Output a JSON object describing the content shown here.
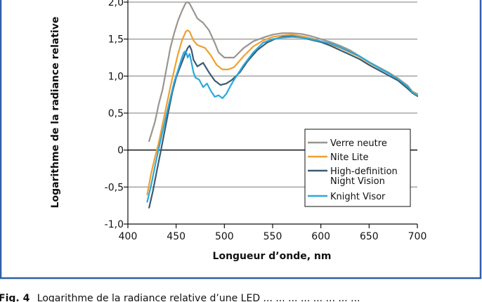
{
  "chart_data": {
    "type": "line",
    "title": "",
    "xlabel": "Longueur d’onde, nm",
    "ylabel": "Logarithme de la radiance relative",
    "xlim": [
      400,
      700
    ],
    "ylim": [
      -1.0,
      2.0
    ],
    "x_ticks": [
      "400",
      "450",
      "500",
      "550",
      "600",
      "650",
      "700"
    ],
    "y_ticks": [
      "-1,0",
      "-0,5",
      "0",
      "0,5",
      "1,0",
      "1,5",
      "2,0"
    ],
    "grid": "horizontal",
    "legend_position": "bottom-right",
    "series": [
      {
        "name": "Verre neutre",
        "color": "#9a958f",
        "x": [
          422,
          428,
          432,
          436,
          440,
          444,
          448,
          452,
          456,
          460,
          462,
          464,
          468,
          472,
          478,
          484,
          490,
          494,
          500,
          504,
          510,
          520,
          530,
          540,
          550,
          560,
          570,
          580,
          590,
          600,
          610,
          620,
          630,
          640,
          650,
          660,
          670,
          680,
          690,
          695,
          700
        ],
        "y": [
          0.12,
          0.38,
          0.62,
          0.82,
          1.1,
          1.38,
          1.58,
          1.75,
          1.88,
          1.99,
          2.0,
          1.98,
          1.88,
          1.78,
          1.72,
          1.62,
          1.45,
          1.32,
          1.25,
          1.25,
          1.25,
          1.38,
          1.47,
          1.52,
          1.56,
          1.58,
          1.58,
          1.57,
          1.54,
          1.5,
          1.46,
          1.41,
          1.35,
          1.27,
          1.19,
          1.12,
          1.05,
          0.97,
          0.87,
          0.79,
          0.76
        ]
      },
      {
        "name": "Nite Lite",
        "color": "#f0a030",
        "x": [
          420,
          424,
          428,
          432,
          436,
          440,
          444,
          448,
          452,
          456,
          460,
          462,
          464,
          468,
          472,
          476,
          480,
          486,
          492,
          498,
          504,
          510,
          520,
          530,
          540,
          550,
          560,
          570,
          580,
          590,
          600,
          610,
          620,
          630,
          640,
          650,
          660,
          670,
          680,
          690,
          695,
          700
        ],
        "y": [
          -0.6,
          -0.32,
          -0.1,
          0.1,
          0.35,
          0.6,
          0.85,
          1.08,
          1.3,
          1.48,
          1.6,
          1.62,
          1.6,
          1.48,
          1.42,
          1.4,
          1.38,
          1.28,
          1.15,
          1.09,
          1.09,
          1.12,
          1.27,
          1.4,
          1.48,
          1.53,
          1.55,
          1.56,
          1.54,
          1.51,
          1.47,
          1.43,
          1.38,
          1.32,
          1.26,
          1.18,
          1.11,
          1.04,
          0.97,
          0.86,
          0.79,
          0.76
        ]
      },
      {
        "name": "High-definition Night Vision",
        "color": "#3c5a73",
        "x": [
          422,
          426,
          430,
          434,
          438,
          442,
          446,
          450,
          454,
          457,
          460,
          462,
          464,
          466,
          468,
          472,
          478,
          484,
          490,
          496,
          502,
          508,
          516,
          524,
          534,
          544,
          552,
          560,
          570,
          580,
          590,
          600,
          610,
          620,
          630,
          640,
          650,
          660,
          670,
          680,
          690,
          695,
          700
        ],
        "y": [
          -0.78,
          -0.55,
          -0.28,
          -0.02,
          0.25,
          0.52,
          0.78,
          0.98,
          1.12,
          1.22,
          1.32,
          1.38,
          1.41,
          1.35,
          1.22,
          1.13,
          1.18,
          1.05,
          0.94,
          0.88,
          0.9,
          0.95,
          1.05,
          1.2,
          1.35,
          1.45,
          1.5,
          1.53,
          1.54,
          1.52,
          1.49,
          1.46,
          1.41,
          1.35,
          1.29,
          1.23,
          1.15,
          1.08,
          1.01,
          0.94,
          0.83,
          0.77,
          0.73
        ]
      },
      {
        "name": "Knight Visor",
        "color": "#29a9de",
        "x": [
          420,
          424,
          428,
          432,
          436,
          440,
          444,
          448,
          452,
          456,
          458,
          460,
          462,
          464,
          466,
          468,
          470,
          474,
          478,
          482,
          486,
          490,
          494,
          498,
          502,
          506,
          510,
          520,
          530,
          540,
          550,
          560,
          570,
          580,
          590,
          600,
          610,
          620,
          630,
          640,
          650,
          660,
          670,
          680,
          690,
          695,
          700
        ],
        "y": [
          -0.7,
          -0.48,
          -0.22,
          0.02,
          0.25,
          0.48,
          0.7,
          0.92,
          1.08,
          1.25,
          1.32,
          1.34,
          1.25,
          1.3,
          1.18,
          1.05,
          0.98,
          0.95,
          0.85,
          0.9,
          0.8,
          0.72,
          0.74,
          0.7,
          0.76,
          0.86,
          0.95,
          1.15,
          1.32,
          1.45,
          1.5,
          1.52,
          1.53,
          1.52,
          1.5,
          1.47,
          1.44,
          1.39,
          1.33,
          1.27,
          1.19,
          1.11,
          1.04,
          0.96,
          0.86,
          0.78,
          0.74
        ]
      }
    ]
  },
  "caption": {
    "label": "Fig. 4",
    "text": "Logarithme de la radiance relative d’une LED ... ... ... ... ... ... ... ..."
  }
}
